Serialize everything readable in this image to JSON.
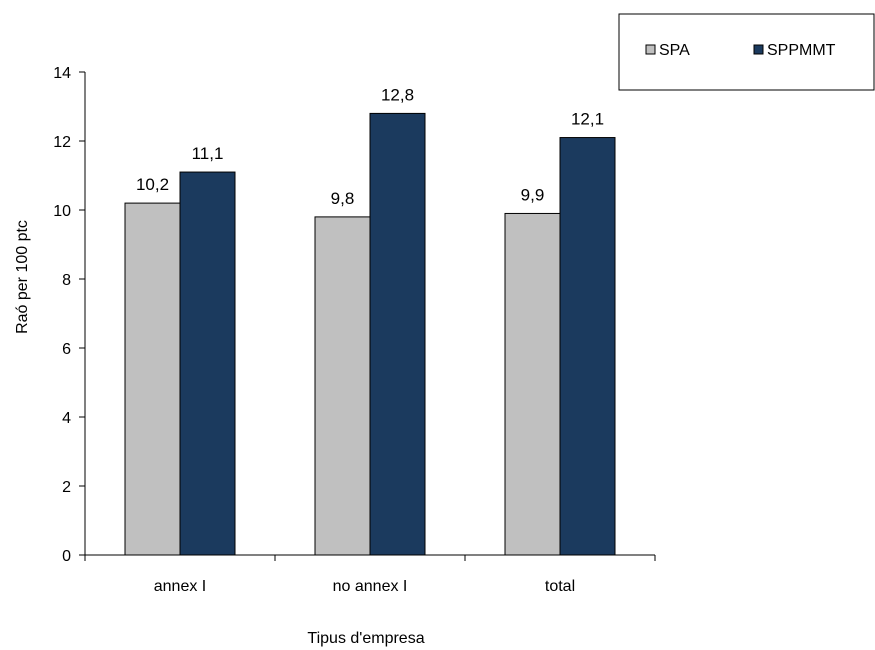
{
  "chart_data": {
    "type": "bar",
    "categories": [
      "annex I",
      "no annex I",
      "total"
    ],
    "series": [
      {
        "name": "SPA",
        "values": [
          10.2,
          9.8,
          9.9
        ],
        "labels": [
          "10,2",
          "9,8",
          "9,9"
        ]
      },
      {
        "name": "SPPMMT",
        "values": [
          11.1,
          12.8,
          12.1
        ],
        "labels": [
          "11,1",
          "12,8",
          "12,1"
        ]
      }
    ],
    "xlabel": "Tipus d'empresa",
    "ylabel": "Raó per 100 ptc",
    "ylim": [
      0,
      14
    ],
    "yticks": [
      0,
      2,
      4,
      6,
      8,
      10,
      12,
      14
    ],
    "grid": false,
    "legend_position": "top-right",
    "colors": {
      "SPA": "#c0c0c0",
      "SPPMMT": "#1b3a5e"
    }
  }
}
